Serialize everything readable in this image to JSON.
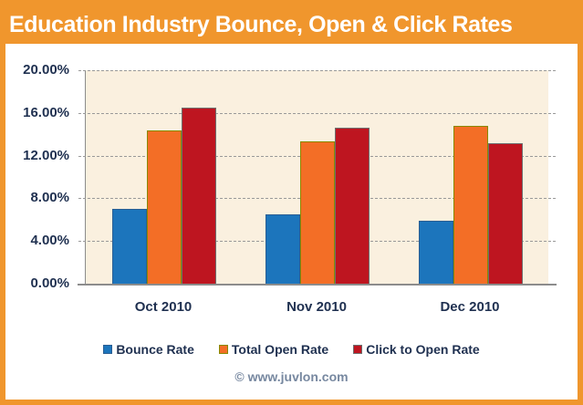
{
  "title": "Education Industry Bounce, Open & Click Rates",
  "footer": {
    "credit": "© www.juvlon.com"
  },
  "colors": {
    "banner": "#F0962D",
    "frame": "#F0962D",
    "plot_bg": "#FAF0DF",
    "grid": "#999999",
    "axis": "#8C8C8C",
    "label_text": "#1F3050",
    "credit_text": "#7788A0",
    "series": [
      "#1C75BC",
      "#F36E26",
      "#BE1520"
    ],
    "series_borders": [
      "#2A5E93",
      "#898900",
      "#6E6E6E"
    ]
  },
  "chart_data": {
    "type": "bar",
    "title": "Education Industry Bounce, Open & Click Rates",
    "categories": [
      "Oct 2010",
      "Nov 2010",
      "Dec 2010"
    ],
    "series": [
      {
        "name": "Bounce Rate",
        "values": [
          7.0,
          6.5,
          5.9
        ]
      },
      {
        "name": "Total Open Rate",
        "values": [
          14.4,
          13.3,
          14.8
        ]
      },
      {
        "name": "Click to Open Rate",
        "values": [
          16.5,
          14.6,
          13.2
        ]
      }
    ],
    "xlabel": "",
    "ylabel": "",
    "ylim": [
      0,
      20
    ],
    "ytick_step": 4,
    "ytick_labels": [
      "0.00%",
      "4.00%",
      "8.00%",
      "12.00%",
      "16.00%",
      "20.00%"
    ],
    "grid": "horizontal-dashed",
    "legend_position": "bottom"
  }
}
